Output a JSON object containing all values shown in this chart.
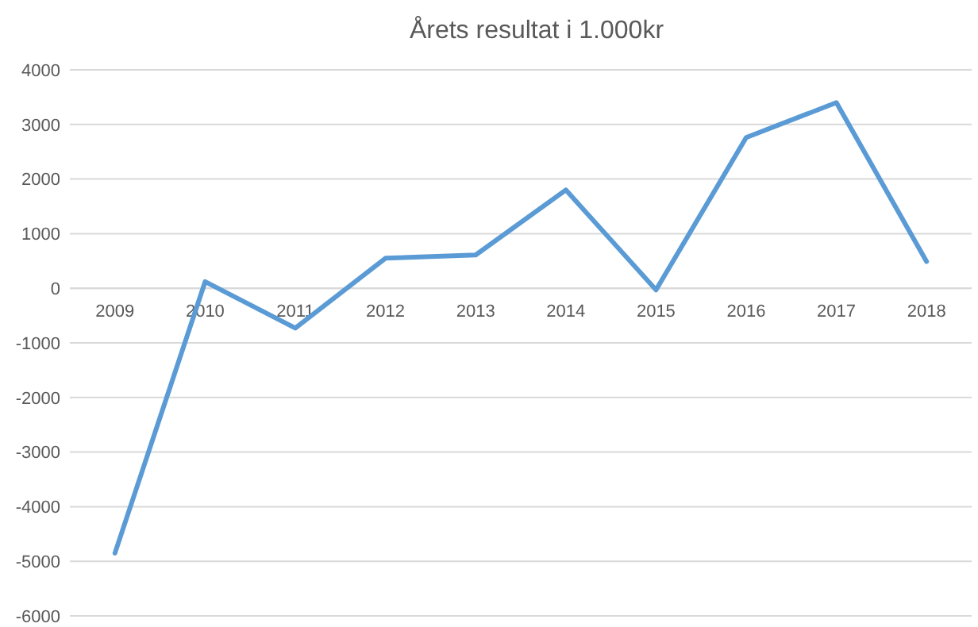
{
  "chart_data": {
    "type": "line",
    "title": "Årets resultat i 1.000kr",
    "categories": [
      "2009",
      "2010",
      "2011",
      "2012",
      "2013",
      "2014",
      "2015",
      "2016",
      "2017",
      "2018"
    ],
    "series": [
      {
        "color": "#5b9bd5",
        "values": [
          -4850,
          120,
          -730,
          550,
          610,
          1800,
          -30,
          2760,
          3400,
          490
        ]
      }
    ],
    "ylim": [
      -6000,
      4000
    ],
    "yticks": [
      -6000,
      -5000,
      -4000,
      -3000,
      -2000,
      -1000,
      0,
      1000,
      2000,
      3000,
      4000
    ],
    "grid": "y",
    "marker": "none",
    "line_style": "solid"
  }
}
